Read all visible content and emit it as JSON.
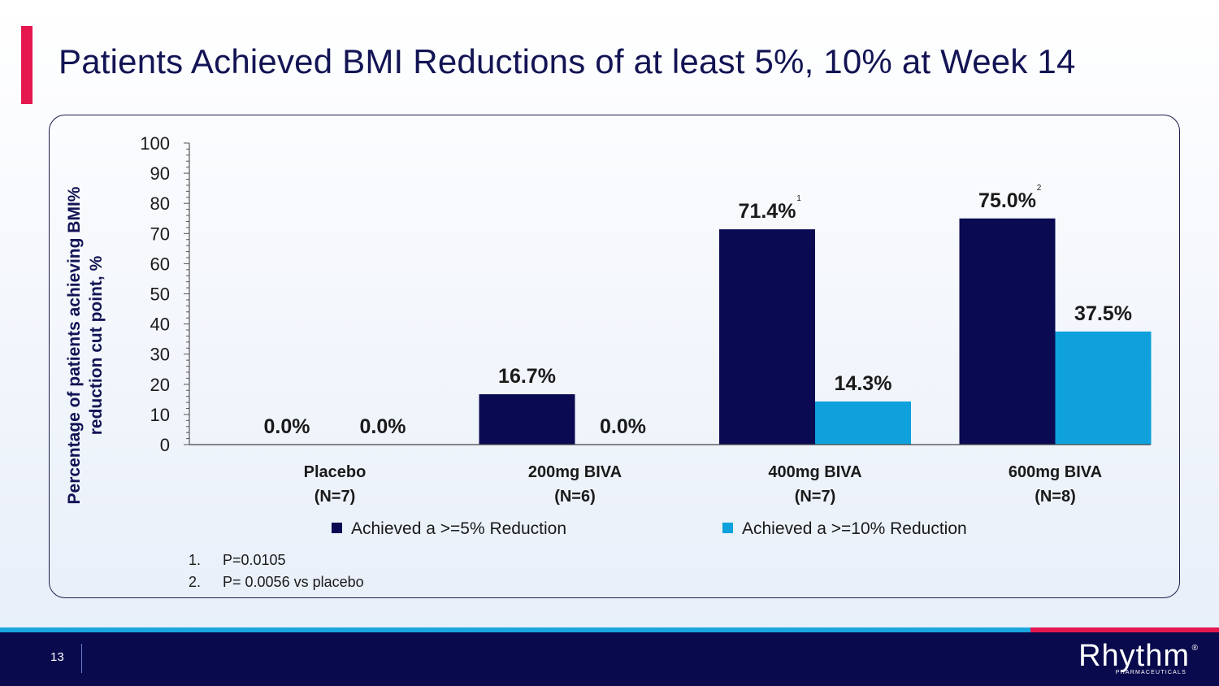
{
  "slide": {
    "title": "Patients Achieved BMI Reductions of at least 5%, 10% at Week 14",
    "page_number": "13",
    "accent_color": "#e5174f",
    "footer_color": "#09094d"
  },
  "chart_data": {
    "type": "bar",
    "title": "",
    "ylabel": "Percentage of patients achieving BMI% reduction cut point, %",
    "ylabel_lines": [
      "Percentage of patients achieving BMI%",
      "reduction cut point, %"
    ],
    "ylim": [
      0,
      100
    ],
    "yticks": [
      "0",
      "10",
      "20",
      "30",
      "40",
      "50",
      "60",
      "70",
      "80",
      "90",
      "100"
    ],
    "categories": [
      [
        "Placebo",
        "(N=7)"
      ],
      [
        "200mg BIVA",
        "(N=6)"
      ],
      [
        "400mg BIVA",
        "(N=7)"
      ],
      [
        "600mg BIVA",
        "(N=8)"
      ]
    ],
    "series": [
      {
        "name": "Achieved a >=5% Reduction",
        "color": "#0a0a52",
        "values": [
          0.0,
          16.7,
          71.4,
          75.0
        ],
        "labels": [
          "0.0%",
          "16.7%",
          "71.4%",
          "75.0%"
        ],
        "superscripts": [
          "",
          "",
          "1",
          "2"
        ]
      },
      {
        "name": "Achieved a >=10% Reduction",
        "color": "#0ea1dc",
        "values": [
          0.0,
          0.0,
          14.3,
          37.5
        ],
        "labels": [
          "0.0%",
          "0.0%",
          "14.3%",
          "37.5%"
        ],
        "superscripts": [
          "",
          "",
          "",
          ""
        ]
      }
    ],
    "legend_position": "bottom",
    "grid": false
  },
  "footnotes": [
    {
      "num": "1.",
      "text": "P=0.0105"
    },
    {
      "num": "2.",
      "text": "P= 0.0056 vs placebo"
    }
  ],
  "logo": {
    "name": "Rhythm",
    "reg": "®",
    "tagline": "PHARMACEUTICALS"
  }
}
